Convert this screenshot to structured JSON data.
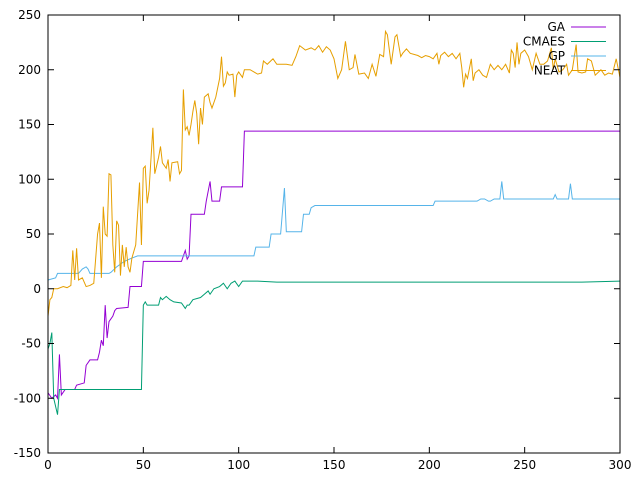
{
  "chart_data": {
    "type": "line",
    "title": "",
    "xlabel": "",
    "ylabel": "",
    "xlim": [
      0,
      300
    ],
    "ylim": [
      -150,
      250
    ],
    "xticks": [
      0,
      50,
      100,
      150,
      200,
      250,
      300
    ],
    "yticks": [
      -150,
      -100,
      -50,
      0,
      50,
      100,
      150,
      200,
      250
    ],
    "grid": false,
    "legend_position": "top-right",
    "series": [
      {
        "name": "GA",
        "color": "#9400d3",
        "points": [
          [
            0,
            -95
          ],
          [
            2,
            -100
          ],
          [
            4,
            -97
          ],
          [
            5,
            -100
          ],
          [
            6,
            -60
          ],
          [
            7,
            -97
          ],
          [
            9,
            -92
          ],
          [
            14,
            -92
          ],
          [
            15,
            -88
          ],
          [
            19,
            -86
          ],
          [
            20,
            -70
          ],
          [
            22,
            -65
          ],
          [
            26,
            -65
          ],
          [
            27,
            -58
          ],
          [
            28,
            -47
          ],
          [
            29,
            -52
          ],
          [
            30,
            -15
          ],
          [
            31,
            -45
          ],
          [
            32,
            -30
          ],
          [
            34,
            -25
          ],
          [
            35,
            -20
          ],
          [
            36,
            -18
          ],
          [
            42,
            -17
          ],
          [
            43,
            2
          ],
          [
            49,
            2
          ],
          [
            50,
            25
          ],
          [
            70,
            25
          ],
          [
            72,
            35
          ],
          [
            73,
            27
          ],
          [
            74,
            30
          ],
          [
            75,
            68
          ],
          [
            82,
            68
          ],
          [
            83,
            80
          ],
          [
            85,
            98
          ],
          [
            86,
            80
          ],
          [
            90,
            80
          ],
          [
            91,
            93
          ],
          [
            102,
            93
          ],
          [
            103,
            144
          ],
          [
            300,
            144
          ]
        ]
      },
      {
        "name": "CMAES",
        "color": "#009e73",
        "points": [
          [
            0,
            -55
          ],
          [
            1,
            -50
          ],
          [
            2,
            -40
          ],
          [
            3,
            -100
          ],
          [
            5,
            -115
          ],
          [
            6,
            -92
          ],
          [
            10,
            -92
          ],
          [
            40,
            -92
          ],
          [
            49,
            -92
          ],
          [
            50,
            -15
          ],
          [
            51,
            -12
          ],
          [
            52,
            -15
          ],
          [
            58,
            -15
          ],
          [
            59,
            -8
          ],
          [
            60,
            -10
          ],
          [
            62,
            -7
          ],
          [
            64,
            -10
          ],
          [
            66,
            -12
          ],
          [
            70,
            -13
          ],
          [
            72,
            -18
          ],
          [
            73,
            -15
          ],
          [
            74,
            -15
          ],
          [
            76,
            -10
          ],
          [
            80,
            -8
          ],
          [
            82,
            -5
          ],
          [
            84,
            -2
          ],
          [
            85,
            -5
          ],
          [
            87,
            0
          ],
          [
            90,
            2
          ],
          [
            92,
            5
          ],
          [
            94,
            0
          ],
          [
            96,
            5
          ],
          [
            98,
            7
          ],
          [
            100,
            2
          ],
          [
            102,
            7
          ],
          [
            110,
            7
          ],
          [
            120,
            6
          ],
          [
            140,
            6
          ],
          [
            160,
            6
          ],
          [
            180,
            6
          ],
          [
            200,
            6
          ],
          [
            230,
            6
          ],
          [
            260,
            6
          ],
          [
            280,
            6
          ],
          [
            300,
            7
          ]
        ]
      },
      {
        "name": "GP",
        "color": "#56b4e9",
        "points": [
          [
            0,
            8
          ],
          [
            4,
            10
          ],
          [
            5,
            14
          ],
          [
            14,
            14
          ],
          [
            16,
            14
          ],
          [
            18,
            18
          ],
          [
            20,
            20
          ],
          [
            21,
            18
          ],
          [
            22,
            14
          ],
          [
            32,
            14
          ],
          [
            33,
            15
          ],
          [
            36,
            20
          ],
          [
            40,
            25
          ],
          [
            44,
            28
          ],
          [
            47,
            30
          ],
          [
            50,
            30
          ],
          [
            102,
            30
          ],
          [
            108,
            30
          ],
          [
            109,
            38
          ],
          [
            116,
            38
          ],
          [
            117,
            50
          ],
          [
            122,
            50
          ],
          [
            124,
            92
          ],
          [
            125,
            52
          ],
          [
            133,
            52
          ],
          [
            134,
            68
          ],
          [
            137,
            68
          ],
          [
            138,
            74
          ],
          [
            140,
            76
          ],
          [
            160,
            76
          ],
          [
            200,
            76
          ],
          [
            202,
            76
          ],
          [
            203,
            80
          ],
          [
            225,
            80
          ],
          [
            227,
            82
          ],
          [
            229,
            82
          ],
          [
            231,
            80
          ],
          [
            232,
            80
          ],
          [
            234,
            82
          ],
          [
            237,
            82
          ],
          [
            238,
            98
          ],
          [
            239,
            82
          ],
          [
            265,
            82
          ],
          [
            266,
            86
          ],
          [
            267,
            82
          ],
          [
            273,
            82
          ],
          [
            274,
            96
          ],
          [
            275,
            82
          ],
          [
            300,
            82
          ]
        ]
      },
      {
        "name": "NEAT",
        "color": "#e69f00",
        "points": [
          [
            0,
            -25
          ],
          [
            1,
            -10
          ],
          [
            2,
            -8
          ],
          [
            3,
            0
          ],
          [
            5,
            0
          ],
          [
            8,
            2
          ],
          [
            10,
            1
          ],
          [
            12,
            3
          ],
          [
            13,
            35
          ],
          [
            14,
            8
          ],
          [
            15,
            37
          ],
          [
            16,
            8
          ],
          [
            18,
            10
          ],
          [
            20,
            2
          ],
          [
            22,
            3
          ],
          [
            24,
            5
          ],
          [
            26,
            50
          ],
          [
            27,
            60
          ],
          [
            28,
            10
          ],
          [
            29,
            75
          ],
          [
            30,
            50
          ],
          [
            31,
            48
          ],
          [
            32,
            105
          ],
          [
            33,
            104
          ],
          [
            34,
            40
          ],
          [
            35,
            15
          ],
          [
            36,
            62
          ],
          [
            37,
            58
          ],
          [
            38,
            12
          ],
          [
            39,
            40
          ],
          [
            40,
            20
          ],
          [
            41,
            38
          ],
          [
            42,
            20
          ],
          [
            43,
            15
          ],
          [
            44,
            28
          ],
          [
            46,
            40
          ],
          [
            48,
            97
          ],
          [
            49,
            40
          ],
          [
            50,
            110
          ],
          [
            51,
            112
          ],
          [
            52,
            78
          ],
          [
            53,
            90
          ],
          [
            55,
            147
          ],
          [
            56,
            105
          ],
          [
            58,
            120
          ],
          [
            59,
            130
          ],
          [
            60,
            115
          ],
          [
            62,
            110
          ],
          [
            63,
            118
          ],
          [
            64,
            98
          ],
          [
            65,
            115
          ],
          [
            68,
            116
          ],
          [
            69,
            105
          ],
          [
            70,
            108
          ],
          [
            71,
            182
          ],
          [
            72,
            145
          ],
          [
            73,
            148
          ],
          [
            74,
            140
          ],
          [
            75,
            150
          ],
          [
            76,
            162
          ],
          [
            77,
            172
          ],
          [
            78,
            160
          ],
          [
            79,
            132
          ],
          [
            80,
            165
          ],
          [
            81,
            150
          ],
          [
            82,
            175
          ],
          [
            84,
            178
          ],
          [
            85,
            170
          ],
          [
            86,
            165
          ],
          [
            88,
            175
          ],
          [
            90,
            192
          ],
          [
            91,
            212
          ],
          [
            92,
            185
          ],
          [
            93,
            188
          ],
          [
            94,
            198
          ],
          [
            95,
            195
          ],
          [
            97,
            196
          ],
          [
            98,
            175
          ],
          [
            99,
            195
          ],
          [
            100,
            198
          ],
          [
            102,
            193
          ],
          [
            103,
            200
          ],
          [
            106,
            200
          ],
          [
            108,
            198
          ],
          [
            110,
            196
          ],
          [
            112,
            197
          ],
          [
            113,
            208
          ],
          [
            115,
            205
          ],
          [
            118,
            210
          ],
          [
            120,
            205
          ],
          [
            125,
            205
          ],
          [
            128,
            204
          ],
          [
            130,
            212
          ],
          [
            132,
            222
          ],
          [
            135,
            218
          ],
          [
            138,
            220
          ],
          [
            140,
            218
          ],
          [
            142,
            222
          ],
          [
            144,
            216
          ],
          [
            146,
            221
          ],
          [
            148,
            218
          ],
          [
            150,
            210
          ],
          [
            152,
            192
          ],
          [
            154,
            200
          ],
          [
            156,
            226
          ],
          [
            158,
            200
          ],
          [
            160,
            202
          ],
          [
            161,
            214
          ],
          [
            163,
            196
          ],
          [
            166,
            197
          ],
          [
            168,
            192
          ],
          [
            170,
            205
          ],
          [
            172,
            194
          ],
          [
            174,
            214
          ],
          [
            176,
            212
          ],
          [
            177,
            235
          ],
          [
            178,
            232
          ],
          [
            180,
            205
          ],
          [
            182,
            230
          ],
          [
            183,
            232
          ],
          [
            185,
            212
          ],
          [
            186,
            215
          ],
          [
            188,
            219
          ],
          [
            190,
            215
          ],
          [
            194,
            213
          ],
          [
            196,
            211
          ],
          [
            198,
            213
          ],
          [
            200,
            212
          ],
          [
            202,
            210
          ],
          [
            204,
            215
          ],
          [
            205,
            205
          ],
          [
            206,
            213
          ],
          [
            208,
            216
          ],
          [
            210,
            212
          ],
          [
            212,
            215
          ],
          [
            214,
            210
          ],
          [
            216,
            215
          ],
          [
            217,
            202
          ],
          [
            218,
            184
          ],
          [
            219,
            196
          ],
          [
            220,
            192
          ],
          [
            222,
            210
          ],
          [
            223,
            190
          ],
          [
            224,
            197
          ],
          [
            226,
            200
          ],
          [
            228,
            195
          ],
          [
            230,
            193
          ],
          [
            232,
            205
          ],
          [
            234,
            200
          ],
          [
            236,
            204
          ],
          [
            238,
            200
          ],
          [
            240,
            205
          ],
          [
            242,
            197
          ],
          [
            243,
            218
          ],
          [
            244,
            215
          ],
          [
            245,
            202
          ],
          [
            246,
            225
          ],
          [
            247,
            205
          ],
          [
            248,
            215
          ],
          [
            250,
            218
          ],
          [
            252,
            212
          ],
          [
            254,
            200
          ],
          [
            256,
            215
          ],
          [
            258,
            205
          ],
          [
            260,
            205
          ],
          [
            262,
            208
          ],
          [
            264,
            220
          ],
          [
            265,
            200
          ],
          [
            266,
            210
          ],
          [
            268,
            198
          ],
          [
            270,
            200
          ],
          [
            272,
            205
          ],
          [
            273,
            195
          ],
          [
            275,
            200
          ],
          [
            277,
            223
          ],
          [
            278,
            198
          ],
          [
            280,
            197
          ],
          [
            282,
            198
          ],
          [
            283,
            210
          ],
          [
            285,
            208
          ],
          [
            287,
            195
          ],
          [
            290,
            200
          ],
          [
            292,
            195
          ],
          [
            294,
            197
          ],
          [
            296,
            196
          ],
          [
            298,
            210
          ],
          [
            300,
            193
          ]
        ]
      }
    ]
  }
}
